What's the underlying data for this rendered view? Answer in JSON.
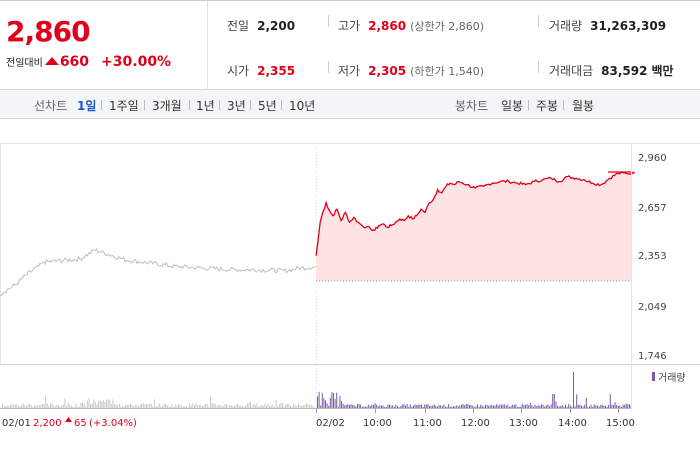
{
  "header": {
    "price": "2,860",
    "change_label": "전일대비",
    "change_value": "660",
    "change_pct": "+30.00%",
    "prev_close_label": "전일",
    "prev_close": "2,200",
    "high_label": "고가",
    "high": "2,860",
    "upper_limit": "(상한가 2,860)",
    "volume_label": "거래량",
    "volume": "31,263,309",
    "open_label": "시가",
    "open": "2,355",
    "low_label": "저가",
    "low": "2,305",
    "lower_limit": "(하한가 1,540)",
    "amount_label": "거래대금",
    "amount": "83,592",
    "amount_unit": "백만"
  },
  "tabs": {
    "line_chart": "선차트",
    "periods": [
      "1일",
      "1주일",
      "3개월",
      "1년",
      "3년",
      "5년",
      "10년"
    ],
    "candle_chart": "봉차트",
    "candles": [
      "일봉",
      "주봉",
      "월봉"
    ]
  },
  "colors": {
    "up": "#e0001a",
    "fill": "#fde3e3",
    "prev_line": "#bdbdbd",
    "volume": "#7b5aa8",
    "volume_prev": "#c8c8c8"
  },
  "chart_data": {
    "type": "line",
    "y_ticks": [
      "2,960",
      "2,657",
      "2,353",
      "2,049",
      "1,746"
    ],
    "ylim": [
      1746,
      2960
    ],
    "baseline": 2200,
    "x_ticks": [
      "02/02",
      "10:00",
      "11:00",
      "12:00",
      "13:00",
      "14:00",
      "15:00"
    ],
    "prev_day": {
      "date": "02/01",
      "close": "2,200",
      "change": "65",
      "change_pct": "(+3.04%)"
    },
    "volume_legend": "거래량",
    "series": [
      {
        "x": [
          "09:00",
          "09:02",
          "09:05",
          "09:08",
          "09:12",
          "09:15",
          "09:20",
          "09:25",
          "09:30",
          "09:35",
          "09:40",
          "09:45",
          "09:50",
          "09:55",
          "10:00",
          "10:05",
          "10:10",
          "10:15",
          "10:20",
          "10:25",
          "10:30",
          "10:35",
          "10:40",
          "10:45",
          "10:50",
          "10:55",
          "11:00",
          "11:05",
          "11:10",
          "11:15",
          "11:20",
          "11:25",
          "11:30",
          "11:35",
          "11:40",
          "11:45",
          "11:50",
          "11:55",
          "12:00",
          "12:10",
          "12:20",
          "12:30",
          "12:40",
          "12:50",
          "13:00",
          "13:10",
          "13:20",
          "13:30",
          "13:40",
          "13:50",
          "14:00",
          "14:10",
          "14:20",
          "14:30",
          "14:40",
          "14:50",
          "15:00",
          "15:10",
          "15:20"
        ],
        "values": [
          2355,
          2430,
          2560,
          2620,
          2680,
          2640,
          2600,
          2640,
          2570,
          2620,
          2560,
          2590,
          2560,
          2540,
          2530,
          2520,
          2510,
          2540,
          2550,
          2530,
          2540,
          2560,
          2580,
          2570,
          2600,
          2580,
          2600,
          2640,
          2620,
          2680,
          2700,
          2760,
          2740,
          2780,
          2800,
          2790,
          2810,
          2800,
          2790,
          2770,
          2780,
          2800,
          2810,
          2810,
          2800,
          2790,
          2810,
          2820,
          2830,
          2810,
          2840,
          2830,
          2820,
          2800,
          2790,
          2830,
          2860,
          2860,
          2860
        ]
      }
    ]
  }
}
